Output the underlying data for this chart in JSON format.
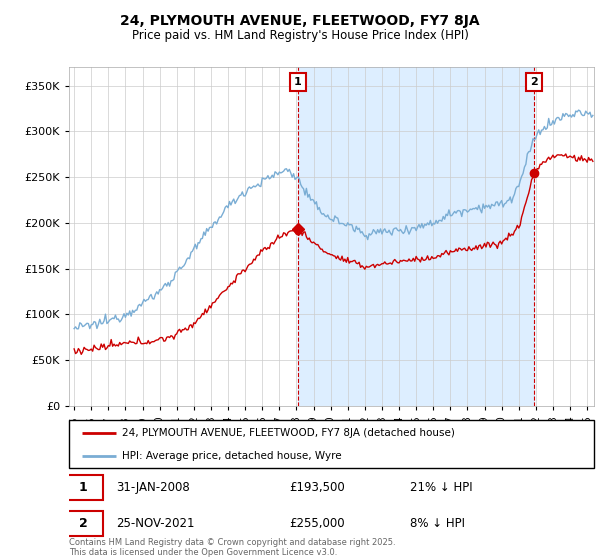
{
  "title": "24, PLYMOUTH AVENUE, FLEETWOOD, FY7 8JA",
  "subtitle": "Price paid vs. HM Land Registry's House Price Index (HPI)",
  "legend_line1": "24, PLYMOUTH AVENUE, FLEETWOOD, FY7 8JA (detached house)",
  "legend_line2": "HPI: Average price, detached house, Wyre",
  "annotation1_date": "31-JAN-2008",
  "annotation1_price": "£193,500",
  "annotation1_hpi": "21% ↓ HPI",
  "annotation2_date": "25-NOV-2021",
  "annotation2_price": "£255,000",
  "annotation2_hpi": "8% ↓ HPI",
  "footnote": "Contains HM Land Registry data © Crown copyright and database right 2025.\nThis data is licensed under the Open Government Licence v3.0.",
  "price_color": "#cc0000",
  "hpi_color": "#7aadd4",
  "vline_color": "#cc0000",
  "fill_color": "#ddeeff",
  "ylim": [
    0,
    370000
  ],
  "yticks": [
    0,
    50000,
    100000,
    150000,
    200000,
    250000,
    300000,
    350000
  ],
  "sale1_x": 2008.083,
  "sale1_y": 193500,
  "sale2_x": 2021.9,
  "sale2_y": 255000,
  "xmin": 1995,
  "xmax": 2025.3,
  "bg_color": "#ffffff",
  "grid_color": "#cccccc"
}
